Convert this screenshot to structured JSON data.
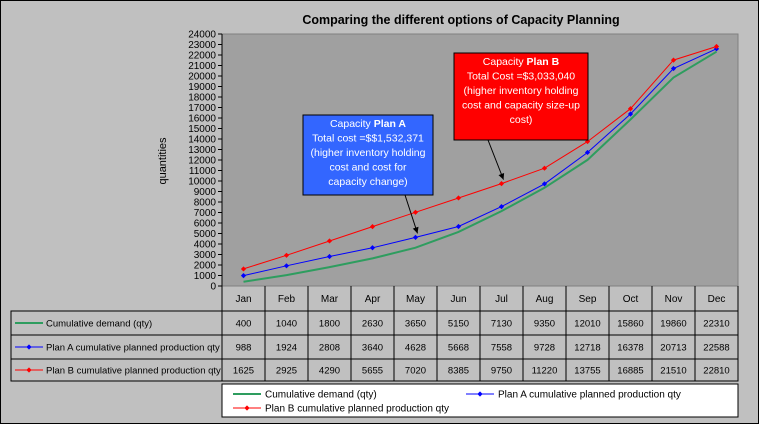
{
  "chart_data": {
    "type": "line",
    "title": "Comparing the different options of Capacity Planning",
    "ylabel": "quantities",
    "xlabel": "",
    "categories": [
      "Jan",
      "Feb",
      "Mar",
      "Apr",
      "May",
      "Jun",
      "Jul",
      "Aug",
      "Sep",
      "Oct",
      "Nov",
      "Dec"
    ],
    "ylim": [
      0,
      24000
    ],
    "ytick_step": 1000,
    "grid": false,
    "legend_position": "bottom-right",
    "series": [
      {
        "name": "Cumulative demand (qty)",
        "color": "#2e9d5f",
        "marker": "none",
        "values": [
          400,
          1040,
          1800,
          2630,
          3650,
          5150,
          7130,
          9350,
          12010,
          15860,
          19860,
          22310
        ]
      },
      {
        "name": "Plan A cumulative planned production qty",
        "color": "#0000ff",
        "marker": "diamond",
        "values": [
          988,
          1924,
          2808,
          3640,
          4628,
          5668,
          7558,
          9728,
          12718,
          16378,
          20713,
          22588
        ]
      },
      {
        "name": "Plan B cumulative planned production qty",
        "color": "#ff0000",
        "marker": "diamond",
        "values": [
          1625,
          2925,
          4290,
          5655,
          7020,
          8385,
          9750,
          11220,
          13755,
          16885,
          21510,
          22810
        ]
      }
    ],
    "data_table_values": [
      [
        "400",
        "1040",
        "1800",
        "2630",
        "3650",
        "5150",
        "7130",
        "9350",
        "12010",
        "15860",
        "19860",
        "22310"
      ],
      [
        "988",
        "1924",
        "2808",
        "3640",
        "4628",
        "5668",
        "7558",
        "9728",
        "12718",
        "16378",
        "20713",
        "22588"
      ],
      [
        "1625",
        "2925",
        "4290",
        "5655",
        "7020",
        "8385",
        "9750",
        "11220",
        "13755",
        "16885",
        "21510",
        "22810"
      ]
    ],
    "annotations": [
      {
        "id": "plan-a",
        "fill": "#3366ff",
        "lines": [
          {
            "parts": [
              {
                "text": "Capacity ",
                "bold": false
              },
              {
                "text": "Plan A",
                "bold": true
              }
            ]
          },
          {
            "parts": [
              {
                "text": "Total cost =$$1,532,371",
                "bold": false
              }
            ]
          },
          {
            "parts": [
              {
                "text": "(higher inventory holding",
                "bold": false
              }
            ]
          },
          {
            "parts": [
              {
                "text": "cost and cost for",
                "bold": false
              }
            ]
          },
          {
            "parts": [
              {
                "text": "capacity change)",
                "bold": false
              }
            ]
          }
        ],
        "points_to": {
          "series": 1,
          "month": "May"
        }
      },
      {
        "id": "plan-b",
        "fill": "#ff0000",
        "lines": [
          {
            "parts": [
              {
                "text": "Capacity ",
                "bold": false
              },
              {
                "text": "Plan B",
                "bold": true
              }
            ]
          },
          {
            "parts": [
              {
                "text": "Total Cost =$3,033,040",
                "bold": false
              }
            ]
          },
          {
            "parts": [
              {
                "text": "(higher inventory holding",
                "bold": false
              }
            ]
          },
          {
            "parts": [
              {
                "text": "cost and capacity size-up",
                "bold": false
              }
            ]
          },
          {
            "parts": [
              {
                "text": "cost)",
                "bold": false
              }
            ]
          }
        ],
        "points_to": {
          "series": 2,
          "month": "Jul"
        }
      }
    ]
  },
  "colors": {
    "frame_background": "#c0c0c0",
    "plot_background": "#a0a0a0"
  }
}
